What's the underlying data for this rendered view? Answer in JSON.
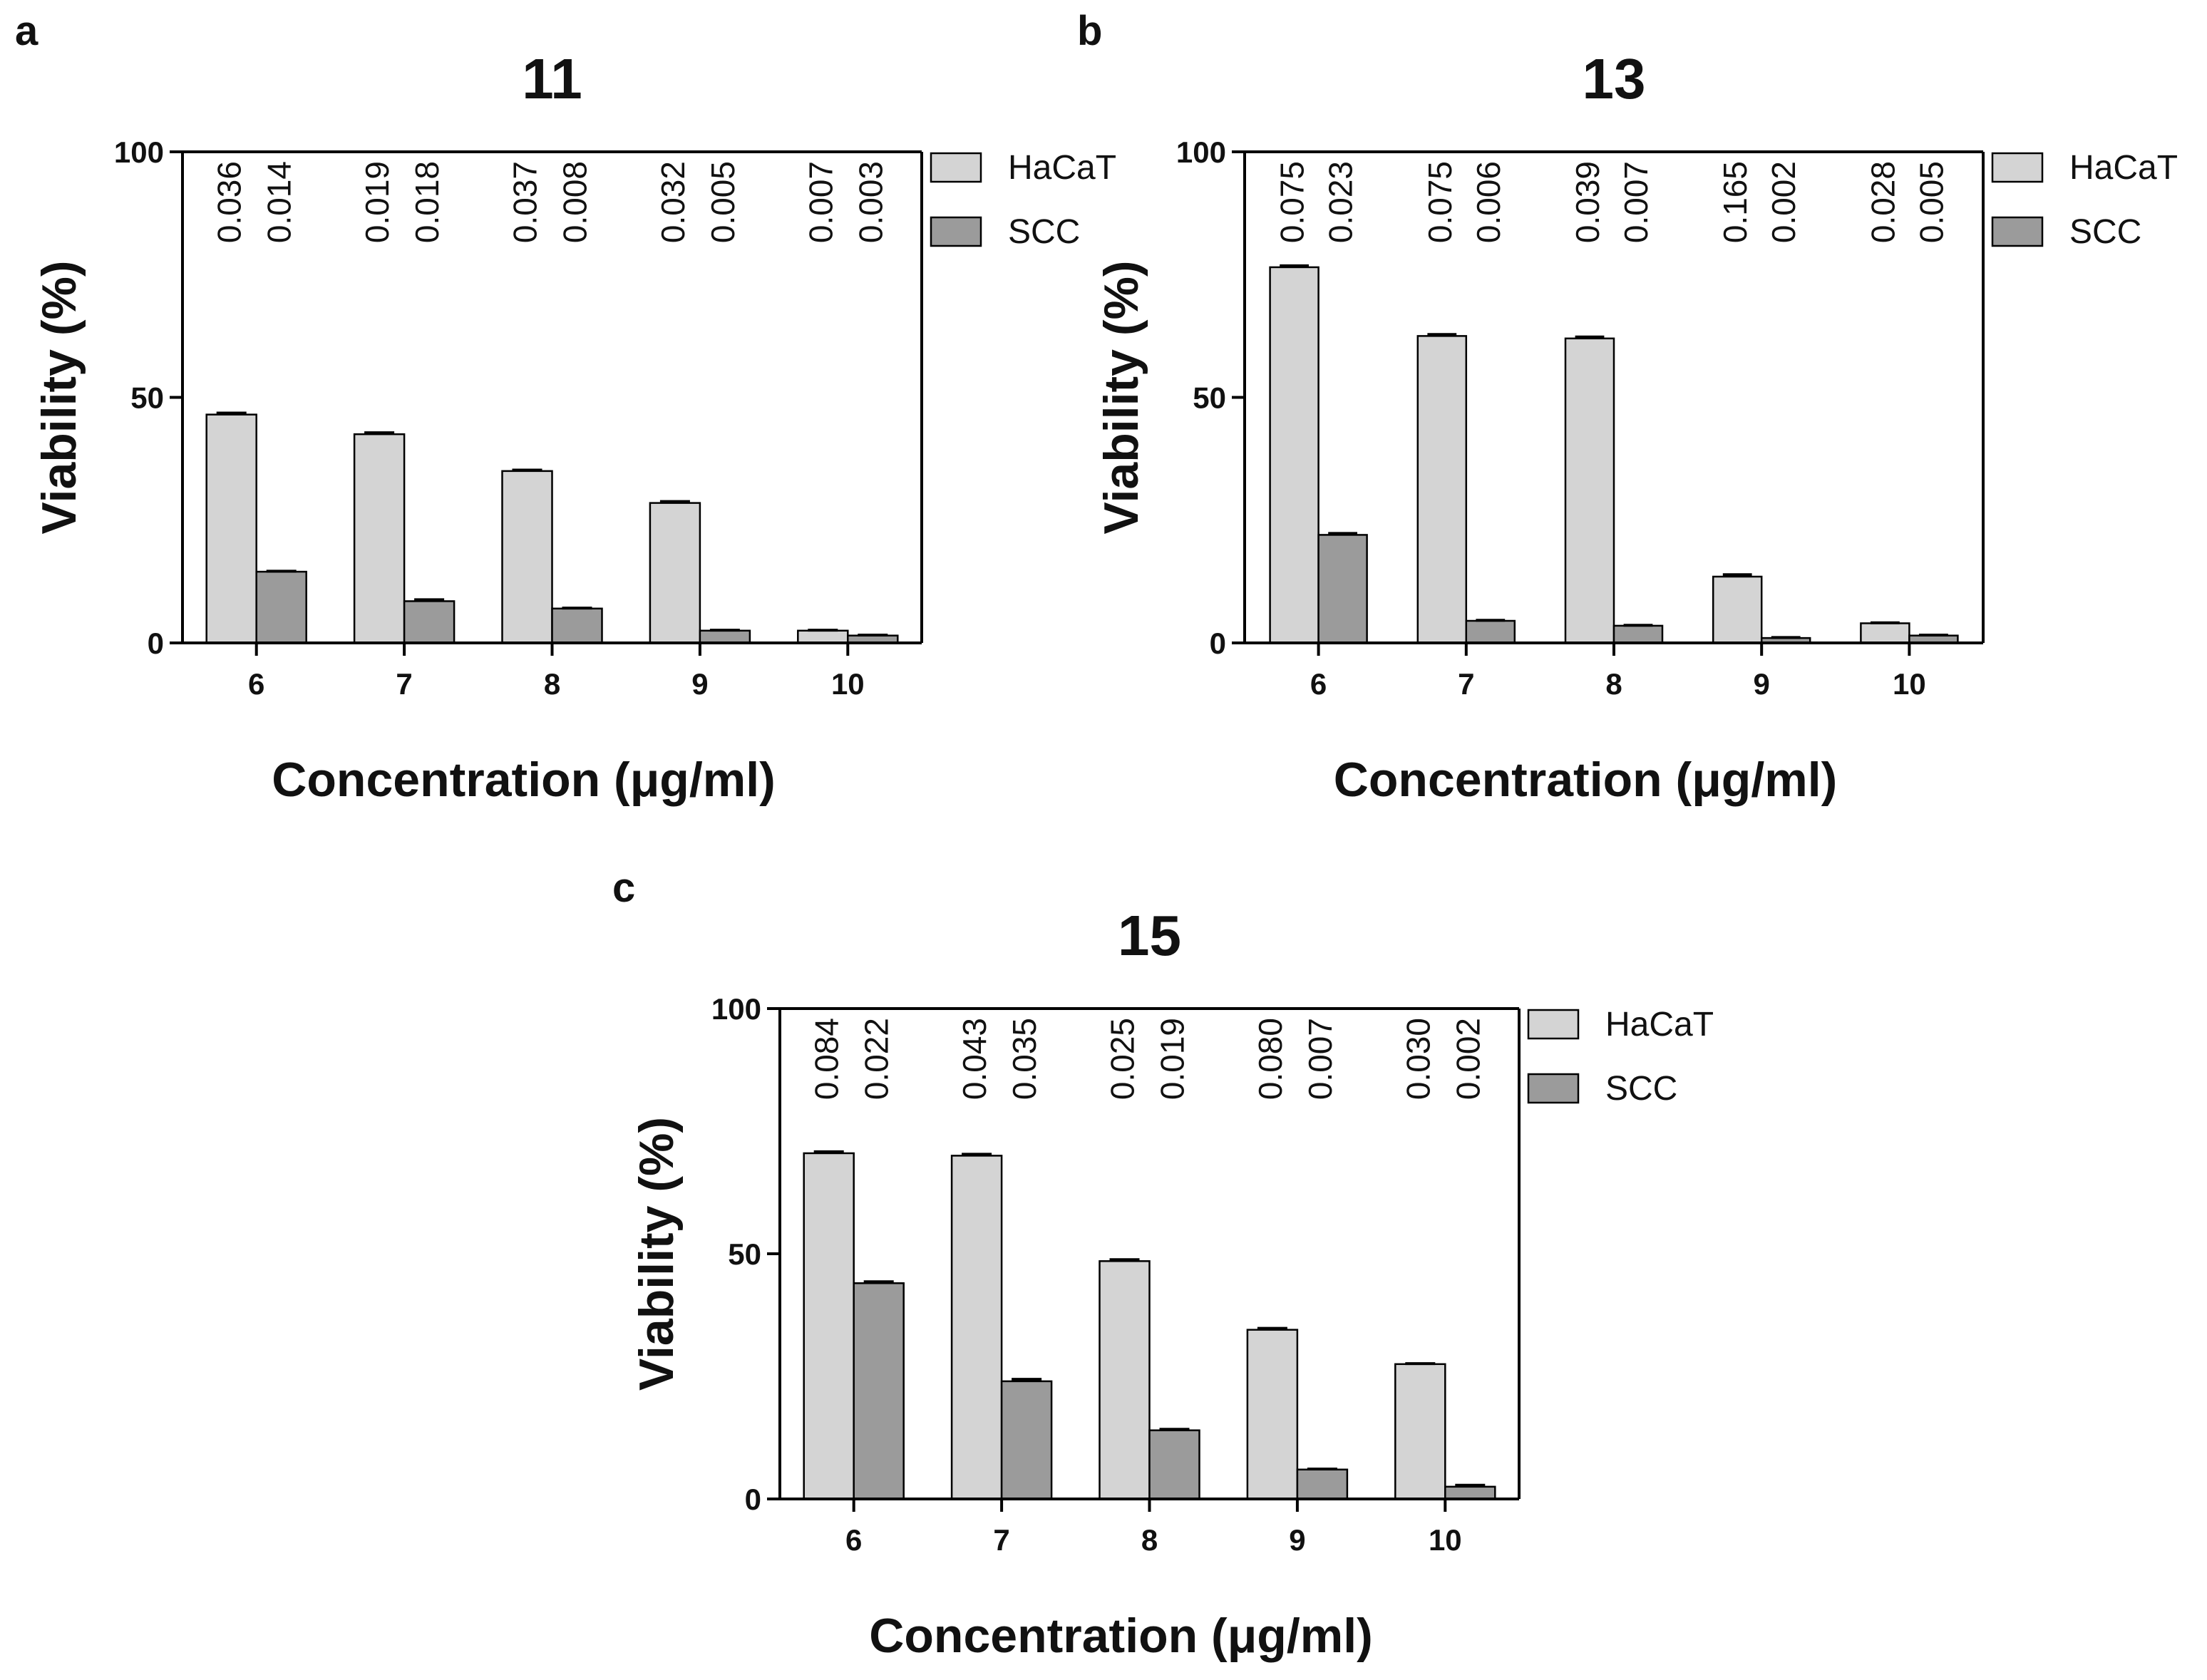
{
  "figure": {
    "legend": {
      "entries": [
        {
          "label": "HaCaT",
          "color": "#d4d4d4"
        },
        {
          "label": "SCC",
          "color": "#9b9b9b"
        }
      ]
    },
    "colors": {
      "axis": "#000000",
      "hacat": "#d4d4d4",
      "scc": "#9b9b9b",
      "text": "#111111"
    }
  },
  "chart_data": [
    {
      "panel_label": "a",
      "title": "11",
      "type": "bar",
      "xlabel": "Concentration (μg/ml)",
      "ylabel": "Viability (%)",
      "ylim": [
        0,
        100
      ],
      "yticks": [
        "0",
        "50",
        "100"
      ],
      "categories": [
        "6",
        "7",
        "8",
        "9",
        "10"
      ],
      "legend_position": "top-right-outside",
      "series": [
        {
          "name": "HaCaT",
          "values": [
            46.5,
            42.5,
            35.0,
            28.5,
            2.5
          ],
          "error": [
            0.3,
            0.3,
            0.2,
            0.3,
            0.1
          ],
          "annotations": [
            "0.036",
            "0.019",
            "0.037",
            "0.032",
            "0.007"
          ]
        },
        {
          "name": "SCC",
          "values": [
            14.5,
            8.5,
            7.0,
            2.5,
            1.5
          ],
          "error": [
            0.1,
            0.3,
            0.1,
            0.1,
            0.1
          ],
          "annotations": [
            "0.014",
            "0.018",
            "0.008",
            "0.005",
            "0.003"
          ]
        }
      ]
    },
    {
      "panel_label": "b",
      "title": "13",
      "type": "bar",
      "xlabel": "Concentration (μg/ml)",
      "ylabel": "Viability (%)",
      "ylim": [
        0,
        100
      ],
      "yticks": [
        "0",
        "50",
        "100"
      ],
      "categories": [
        "6",
        "7",
        "8",
        "9",
        "10"
      ],
      "legend_position": "top-right-outside",
      "series": [
        {
          "name": "HaCaT",
          "values": [
            76.5,
            62.5,
            62.0,
            13.5,
            4.0
          ],
          "error": [
            0.3,
            0.3,
            0.3,
            0.4,
            0.1
          ],
          "annotations": [
            "0.075",
            "0.075",
            "0.039",
            "0.165",
            "0.028"
          ]
        },
        {
          "name": "SCC",
          "values": [
            22.0,
            4.5,
            3.5,
            1.0,
            1.5
          ],
          "error": [
            0.3,
            0.1,
            0.1,
            0.1,
            0.1
          ],
          "annotations": [
            "0.023",
            "0.006",
            "0.007",
            "0.002",
            "0.005"
          ]
        }
      ]
    },
    {
      "panel_label": "c",
      "title": "15",
      "type": "bar",
      "xlabel": "Concentration (μg/ml)",
      "ylabel": "Viability (%)",
      "ylim": [
        0,
        100
      ],
      "yticks": [
        "0",
        "50",
        "100"
      ],
      "categories": [
        "6",
        "7",
        "8",
        "9",
        "10"
      ],
      "legend_position": "top-right-outside",
      "series": [
        {
          "name": "HaCaT",
          "values": [
            70.5,
            70.0,
            48.5,
            34.5,
            27.5
          ],
          "error": [
            0.3,
            0.3,
            0.3,
            0.3,
            0.1
          ],
          "annotations": [
            "0.084",
            "0.043",
            "0.025",
            "0.080",
            "0.030"
          ]
        },
        {
          "name": "SCC",
          "values": [
            44.0,
            24.0,
            14.0,
            6.0,
            2.5
          ],
          "error": [
            0.3,
            0.4,
            0.2,
            0.1,
            0.3
          ],
          "annotations": [
            "0.022",
            "0.035",
            "0.019",
            "0.007",
            "0.002"
          ]
        }
      ]
    }
  ]
}
